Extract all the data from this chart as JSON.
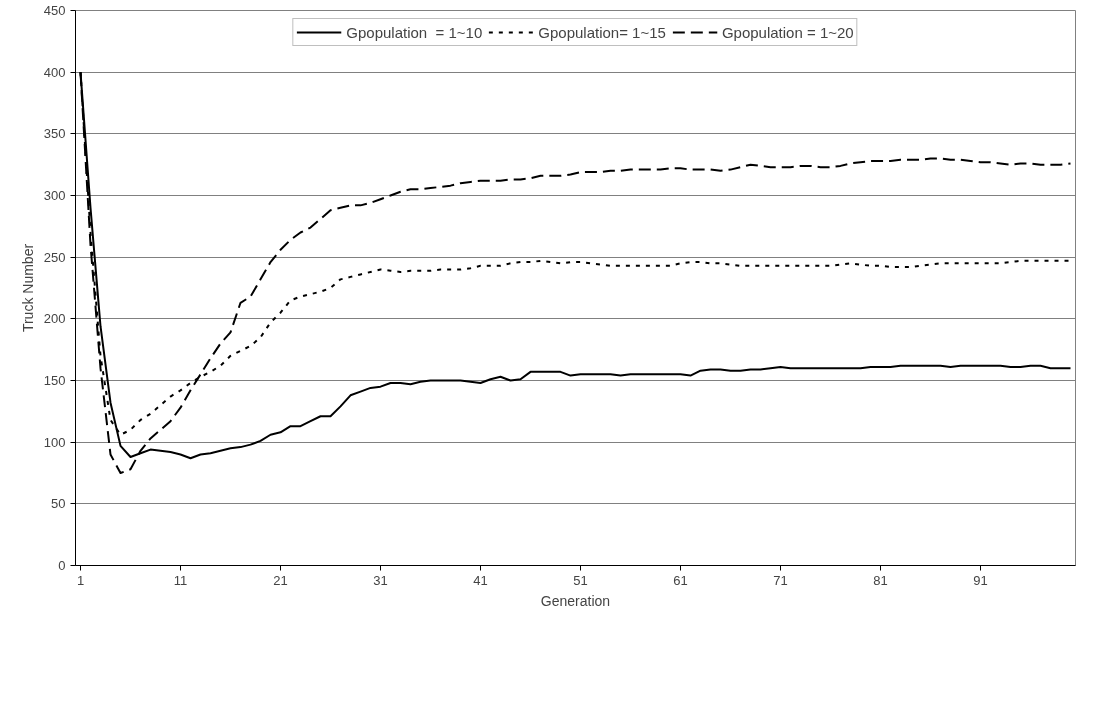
{
  "chart_data": {
    "type": "line",
    "xlabel": "Generation",
    "ylabel": "Truck Number",
    "x": [
      1,
      2,
      3,
      4,
      5,
      6,
      7,
      8,
      9,
      10,
      11,
      12,
      13,
      14,
      15,
      16,
      17,
      18,
      19,
      20,
      21,
      22,
      23,
      24,
      25,
      26,
      27,
      28,
      29,
      30,
      31,
      32,
      33,
      34,
      35,
      36,
      37,
      38,
      39,
      40,
      41,
      42,
      43,
      44,
      45,
      46,
      47,
      48,
      49,
      50,
      51,
      52,
      53,
      54,
      55,
      56,
      57,
      58,
      59,
      60,
      61,
      62,
      63,
      64,
      65,
      66,
      67,
      68,
      69,
      70,
      71,
      72,
      73,
      74,
      75,
      76,
      77,
      78,
      79,
      80,
      81,
      82,
      83,
      84,
      85,
      86,
      87,
      88,
      89,
      90,
      91,
      92,
      93,
      94,
      95,
      96,
      97,
      98,
      99,
      100
    ],
    "xlim": [
      0.5,
      100.5
    ],
    "xticks": [
      1,
      11,
      21,
      31,
      41,
      51,
      61,
      71,
      81,
      91
    ],
    "ylim": [
      0,
      450
    ],
    "yticks": [
      0,
      50,
      100,
      150,
      200,
      250,
      300,
      350,
      400,
      450
    ],
    "grid": "y",
    "legend": "top",
    "marker": "none",
    "series": [
      {
        "name": "Gpopulation  = 1~10",
        "color": "#000000",
        "line_style": "solid",
        "values": [
          400,
          290,
          194,
          132,
          97,
          88,
          91,
          94,
          93,
          92,
          90,
          87,
          90,
          91,
          93,
          95,
          96,
          98,
          101,
          106,
          108,
          113,
          113,
          117,
          121,
          121,
          129,
          138,
          141,
          144,
          145,
          148,
          148,
          147,
          149,
          150,
          150,
          150,
          150,
          149,
          148,
          151,
          153,
          150,
          151,
          157,
          157,
          157,
          157,
          154,
          155,
          155,
          155,
          155,
          154,
          155,
          155,
          155,
          155,
          155,
          155,
          154,
          158,
          159,
          159,
          158,
          158,
          159,
          159,
          160,
          161,
          160,
          160,
          160,
          160,
          160,
          160,
          160,
          160,
          161,
          161,
          161,
          162,
          162,
          162,
          162,
          162,
          161,
          162,
          162,
          162,
          162,
          162,
          161,
          161,
          162,
          162,
          160,
          160,
          160
        ]
      },
      {
        "name": "Gpopulation= 1~15",
        "color": "#000000",
        "line_style": "dotted",
        "values": [
          400,
          270,
          170,
          118,
          106,
          110,
          118,
          123,
          130,
          137,
          142,
          148,
          153,
          157,
          162,
          170,
          174,
          178,
          185,
          197,
          205,
          215,
          218,
          220,
          222,
          225,
          232,
          234,
          236,
          238,
          240,
          239,
          238,
          239,
          239,
          239,
          240,
          240,
          240,
          241,
          243,
          243,
          243,
          245,
          246,
          246,
          247,
          246,
          245,
          246,
          246,
          245,
          244,
          243,
          243,
          243,
          243,
          243,
          243,
          243,
          245,
          246,
          246,
          245,
          245,
          244,
          243,
          243,
          243,
          243,
          243,
          243,
          243,
          243,
          243,
          243,
          244,
          245,
          244,
          243,
          243,
          242,
          242,
          242,
          243,
          244,
          245,
          245,
          245,
          245,
          245,
          245,
          245,
          246,
          247,
          247,
          247,
          247,
          247,
          247
        ]
      },
      {
        "name": "Gpopulation = 1~20",
        "color": "#000000",
        "line_style": "dashed",
        "values": [
          400,
          260,
          160,
          90,
          75,
          78,
          93,
          103,
          110,
          117,
          128,
          142,
          155,
          168,
          180,
          189,
          213,
          218,
          232,
          246,
          256,
          264,
          270,
          274,
          281,
          288,
          290,
          292,
          292,
          294,
          297,
          300,
          303,
          305,
          305,
          306,
          307,
          308,
          310,
          311,
          312,
          312,
          312,
          313,
          313,
          314,
          316,
          316,
          316,
          317,
          319,
          319,
          319,
          320,
          320,
          321,
          321,
          321,
          321,
          322,
          322,
          321,
          321,
          321,
          320,
          321,
          323,
          325,
          324,
          323,
          323,
          323,
          324,
          324,
          323,
          323,
          324,
          326,
          327,
          328,
          328,
          328,
          329,
          329,
          329,
          330,
          330,
          329,
          329,
          328,
          327,
          327,
          326,
          325,
          326,
          326,
          325,
          325,
          325,
          326
        ]
      }
    ]
  }
}
